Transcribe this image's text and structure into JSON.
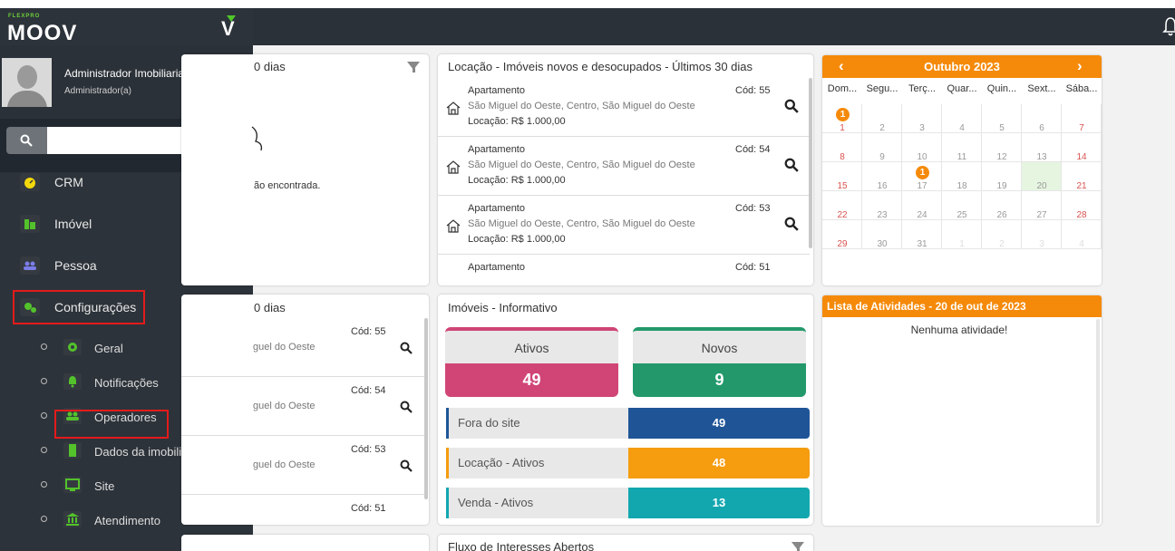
{
  "brand": {
    "small": "FLEXPRO",
    "name": "MOOV",
    "mark": "V"
  },
  "user": {
    "name": "Administrador Imobiliaria Teste",
    "role": "Administrador(a)"
  },
  "search": {
    "placeholder": ""
  },
  "nav": [
    {
      "label": "CRM",
      "icon": "gauge-icon",
      "color": "#f5d90a"
    },
    {
      "label": "Imóvel",
      "icon": "building-icon",
      "color": "#53c22b"
    },
    {
      "label": "Pessoa",
      "icon": "people-icon",
      "color": "#7b7de8"
    },
    {
      "label": "Configurações",
      "icon": "gears-icon",
      "color": "#53c22b"
    }
  ],
  "subnav": [
    {
      "label": "Geral",
      "icon": "gear-icon"
    },
    {
      "label": "Notificações",
      "icon": "bell-icon"
    },
    {
      "label": "Operadores",
      "icon": "users-icon"
    },
    {
      "label": "Dados da imobiliária",
      "icon": "building-icon"
    },
    {
      "label": "Site",
      "icon": "monitor-icon"
    },
    {
      "label": "Atendimento",
      "icon": "bank-icon"
    }
  ],
  "panel_left_top": {
    "title_fragment": "0 dias",
    "empty_text": "ão encontrada."
  },
  "panel_left_mid": {
    "title_fragment": "0 dias",
    "rows": [
      {
        "addr": "guel do Oeste",
        "code": "Cód: 55"
      },
      {
        "addr": "guel do Oeste",
        "code": "Cód: 54"
      },
      {
        "addr": "guel do Oeste",
        "code": "Cód: 53"
      },
      {
        "addr": "",
        "code": "Cód: 51"
      }
    ]
  },
  "locacao": {
    "title": "Locação - Imóveis novos e desocupados - Últimos 30 dias",
    "items": [
      {
        "type": "Apartamento",
        "address": "São Miguel do Oeste, Centro, São Miguel do Oeste",
        "price_label": "Locação:",
        "price": "R$ 1.000,00",
        "code": "Cód: 55"
      },
      {
        "type": "Apartamento",
        "address": "São Miguel do Oeste, Centro, São Miguel do Oeste",
        "price_label": "Locação:",
        "price": "R$ 1.000,00",
        "code": "Cód: 54"
      },
      {
        "type": "Apartamento",
        "address": "São Miguel do Oeste, Centro, São Miguel do Oeste",
        "price_label": "Locação:",
        "price": "R$ 1.000,00",
        "code": "Cód: 53"
      },
      {
        "type": "Apartamento",
        "address": "",
        "price_label": "",
        "price": "",
        "code": "Cód: 51"
      }
    ]
  },
  "informativo": {
    "title": "Imóveis - Informativo",
    "ativos": {
      "label": "Ativos",
      "value": "49",
      "color": "#d04576"
    },
    "novos": {
      "label": "Novos",
      "value": "9",
      "color": "#23996b"
    },
    "rows": [
      {
        "label": "Fora do site",
        "value": "49",
        "color": "#1f5597"
      },
      {
        "label": "Locação - Ativos",
        "value": "48",
        "color": "#f59c0f"
      },
      {
        "label": "Venda - Ativos",
        "value": "13",
        "color": "#12a7af"
      }
    ]
  },
  "calendar": {
    "month": "Outubro 2023",
    "prev": "‹",
    "next": "›",
    "day_names": [
      "Dom...",
      "Segu...",
      "Terç...",
      "Quar...",
      "Quin...",
      "Sext...",
      "Sába..."
    ],
    "weeks": [
      [
        "1",
        "2",
        "3",
        "4",
        "5",
        "6",
        "7"
      ],
      [
        "8",
        "9",
        "10",
        "11",
        "12",
        "13",
        "14"
      ],
      [
        "15",
        "16",
        "17",
        "18",
        "19",
        "20",
        "21"
      ],
      [
        "22",
        "23",
        "24",
        "25",
        "26",
        "27",
        "28"
      ],
      [
        "29",
        "30",
        "31",
        "1",
        "2",
        "3",
        "4"
      ]
    ],
    "badges": [
      {
        "day": "1",
        "count": "1"
      },
      {
        "day": "17",
        "count": "1"
      }
    ],
    "today": "20"
  },
  "atividades": {
    "title": "Lista de Atividades - 20 de out de 2023",
    "empty": "Nenhuma atividade!"
  },
  "fluxo": {
    "title": "Fluxo de Interesses Abertos"
  },
  "colors": {
    "sidebar": "#2d333a",
    "topbar": "#2b3138",
    "accent_orange": "#f58a0a",
    "highlight_red": "#e31b1b",
    "brand_green": "#4fc72a"
  }
}
